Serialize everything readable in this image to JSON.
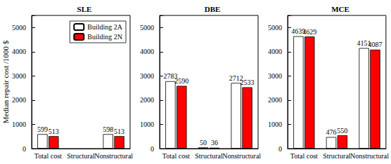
{
  "chart_data": [
    {
      "type": "bar",
      "title": "SLE",
      "ylabel": "Median repair cost /1000 $",
      "categories": [
        "Total cost",
        "Structural",
        "Nonstructural"
      ],
      "series": [
        {
          "name": "Building 2A",
          "color": "#ffffff",
          "values": [
            599,
            null,
            598
          ]
        },
        {
          "name": "Building 2N",
          "color": "#ff0000",
          "values": [
            513,
            null,
            513
          ]
        }
      ],
      "ylim": [
        0,
        5500
      ],
      "yticks": [
        0,
        1000,
        2000,
        3000,
        4000,
        5000
      ],
      "data_labels": true,
      "legend": "upper right"
    },
    {
      "type": "bar",
      "title": "DBE",
      "categories": [
        "Total cost",
        "Structural",
        "Nonstructural"
      ],
      "series": [
        {
          "name": "Building 2A",
          "color": "#ffffff",
          "values": [
            2783,
            50,
            2712
          ]
        },
        {
          "name": "Building 2N",
          "color": "#ff0000",
          "values": [
            2590,
            36,
            2533
          ]
        }
      ],
      "ylim": [
        0,
        5500
      ],
      "yticks": [
        0,
        1000,
        2000,
        3000,
        4000,
        5000
      ],
      "data_labels": true
    },
    {
      "type": "bar",
      "title": "MCE",
      "categories": [
        "Total cost",
        "Structural",
        "Nonstructural"
      ],
      "series": [
        {
          "name": "Building 2A",
          "color": "#ffffff",
          "values": [
            4639,
            476,
            4151
          ]
        },
        {
          "name": "Building 2N",
          "color": "#ff0000",
          "values": [
            4629,
            550,
            4087
          ]
        }
      ],
      "ylim": [
        0,
        5500
      ],
      "yticks": [
        0,
        1000,
        2000,
        3000,
        4000,
        5000
      ],
      "data_labels": true
    }
  ]
}
